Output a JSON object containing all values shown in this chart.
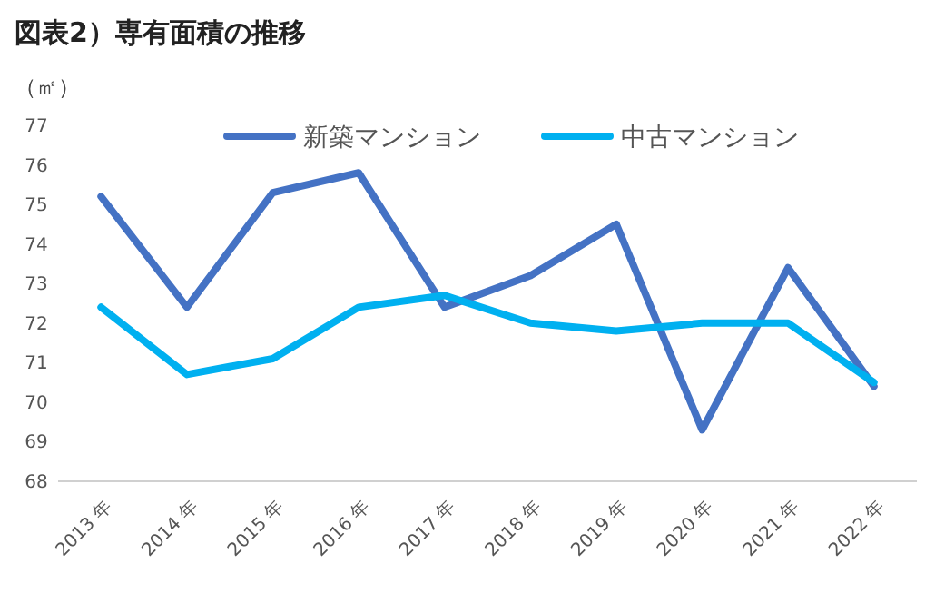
{
  "chart_data": {
    "type": "line",
    "title": "図表2）専有面積の推移",
    "ylabel": "（㎡）",
    "categories": [
      "2013 年",
      "2014 年",
      "2015 年",
      "2016 年",
      "2017 年",
      "2018 年",
      "2019 年",
      "2020 年",
      "2021 年",
      "2022 年"
    ],
    "series": [
      {
        "name": "新築マンション",
        "color": "#4472c4",
        "values": [
          75.2,
          72.4,
          75.3,
          75.8,
          72.4,
          73.2,
          74.5,
          69.3,
          73.4,
          70.4
        ]
      },
      {
        "name": "中古マンション",
        "color": "#00b0f0",
        "values": [
          72.4,
          70.7,
          71.1,
          72.4,
          72.7,
          72.0,
          71.8,
          72.0,
          72.0,
          70.5
        ]
      }
    ],
    "ylim": [
      68,
      77
    ],
    "yticks": [
      68,
      69,
      70,
      71,
      72,
      73,
      74,
      75,
      76,
      77
    ],
    "grid": false,
    "legend": "top",
    "marker": "none",
    "line_style": "solid"
  }
}
